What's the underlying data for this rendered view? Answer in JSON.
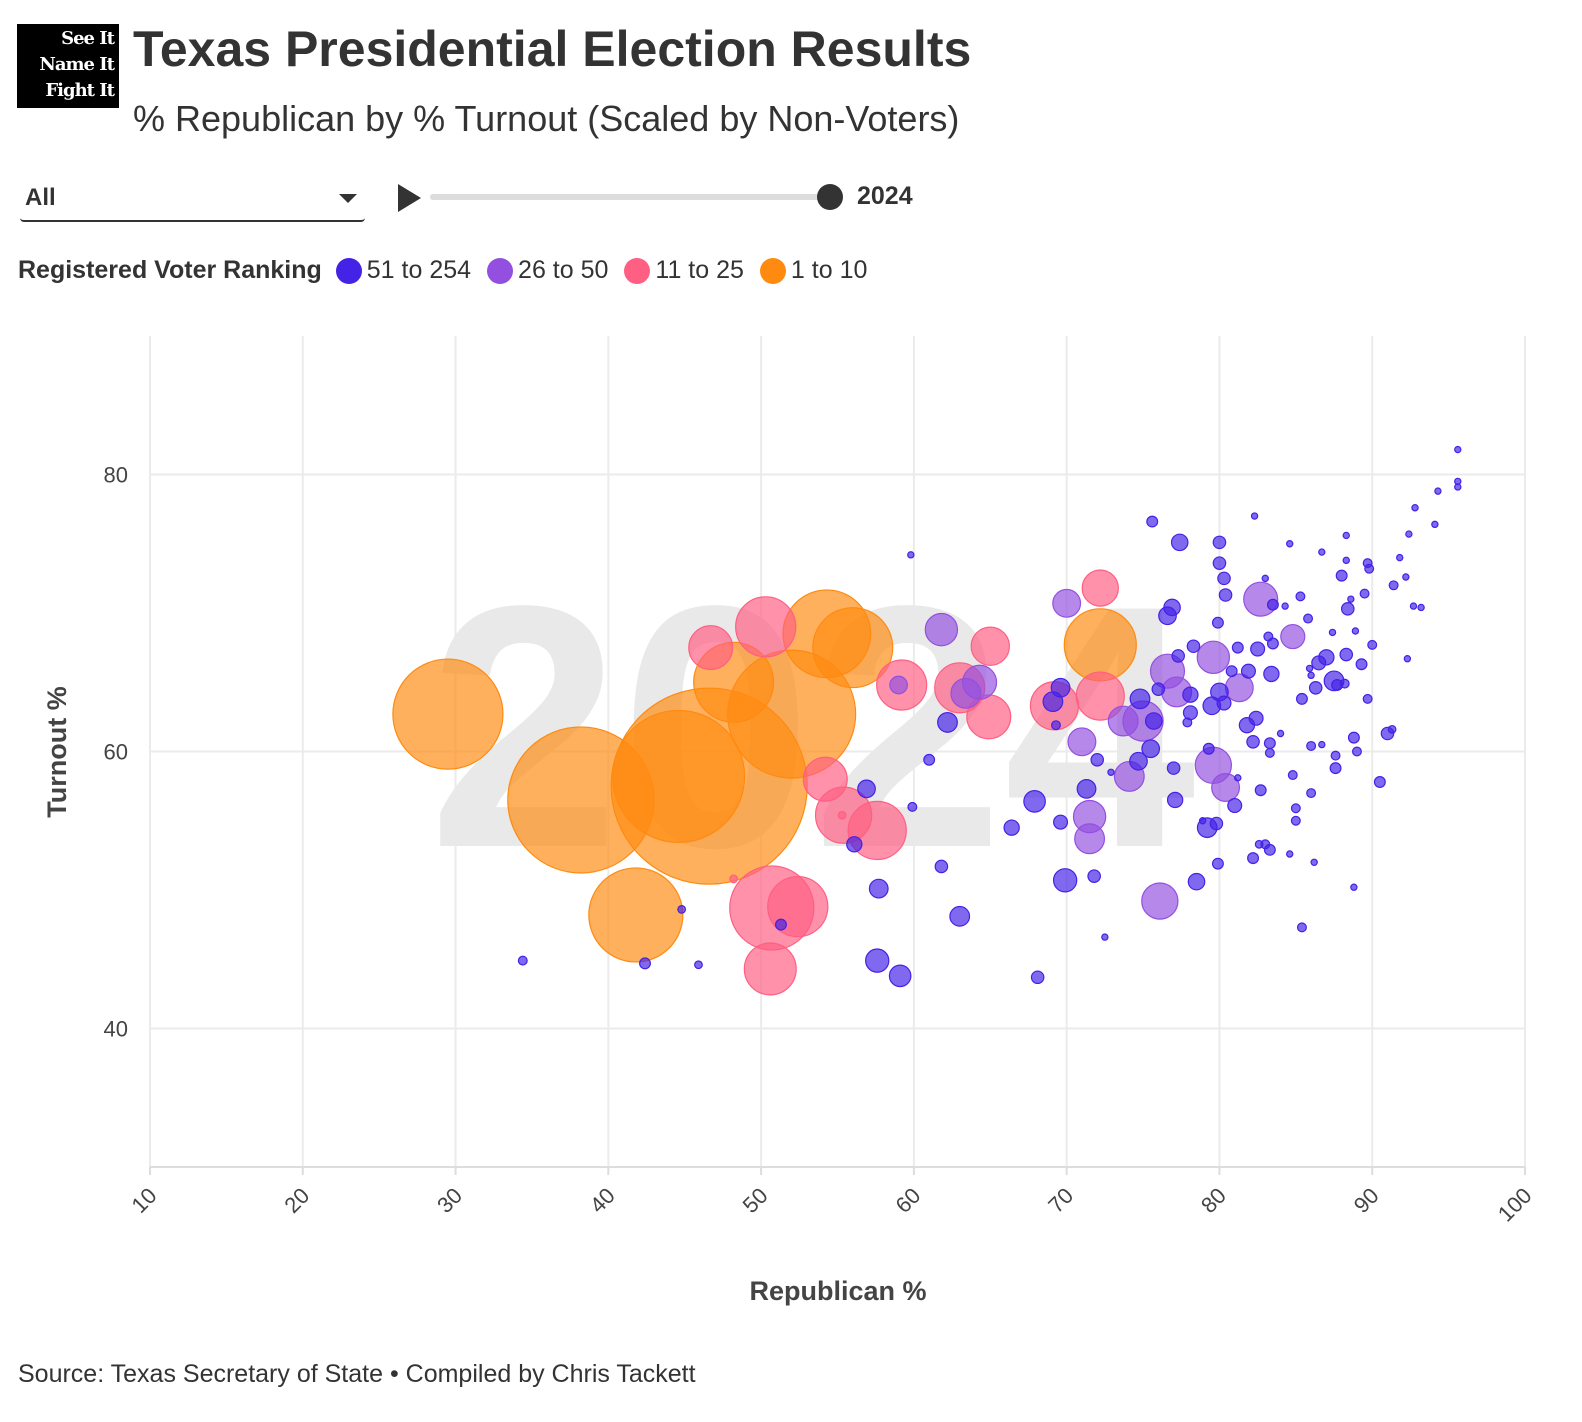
{
  "logo": {
    "lines": [
      "See It",
      "Name It",
      "Fight It"
    ]
  },
  "header": {
    "title": "Texas Presidential Election Results",
    "subtitle": "% Republican by % Turnout (Scaled by Non-Voters)"
  },
  "controls": {
    "filter_value": "All",
    "year": "2024",
    "slider_progress": 1.0
  },
  "legend": {
    "title": "Registered Voter Ranking",
    "items": [
      {
        "label": "51 to 254",
        "color": "#4422e6"
      },
      {
        "label": "26 to 50",
        "color": "#9350e0"
      },
      {
        "label": "11 to 25",
        "color": "#ff5f82"
      },
      {
        "label": "1 to 10",
        "color": "#ff8a10"
      }
    ]
  },
  "footer": {
    "source": "Source: Texas Secretary of State • Compiled by Chris Tackett"
  },
  "chart_data": {
    "type": "scatter",
    "title": "Texas Presidential Election Results",
    "subtitle": "% Republican by % Turnout (Scaled by Non-Voters)",
    "xlabel": "Republican %",
    "ylabel": "Turnout %",
    "xlim": [
      10,
      100
    ],
    "ylim": [
      30,
      90
    ],
    "xticks": [
      "10",
      "20",
      "30",
      "40",
      "50",
      "60",
      "70",
      "80",
      "90",
      "100"
    ],
    "yticks": [
      "40",
      "60",
      "80"
    ],
    "xtick_values": [
      10,
      20,
      30,
      40,
      50,
      60,
      70,
      80,
      90,
      100
    ],
    "ytick_values": [
      40,
      60,
      80
    ],
    "grid": true,
    "watermark": "2024",
    "size_field": "non_voters_thousands_approx",
    "point_fields": [
      "republican_pct",
      "turnout_pct",
      "non_voters_k",
      "ranking_group"
    ],
    "groups": [
      "51 to 254",
      "26 to 50",
      "11 to 25",
      "1 to 10"
    ],
    "points": [
      [
        29.5,
        62.7,
        315,
        3
      ],
      [
        38.2,
        56.5,
        555,
        3
      ],
      [
        46.6,
        57.5,
        1000,
        3
      ],
      [
        44.6,
        58.2,
        453,
        3
      ],
      [
        52,
        62.7,
        426,
        3
      ],
      [
        48.2,
        65,
        166,
        3
      ],
      [
        54.3,
        68.5,
        200,
        3
      ],
      [
        56,
        67.5,
        166,
        3
      ],
      [
        41.8,
        48.2,
        230,
        3
      ],
      [
        72.2,
        67.7,
        135,
        3
      ],
      [
        50.3,
        69,
        94,
        2
      ],
      [
        46.7,
        67.5,
        50,
        2
      ],
      [
        59.2,
        64.8,
        65,
        2
      ],
      [
        63,
        64.6,
        65,
        2
      ],
      [
        65,
        67.6,
        38,
        2
      ],
      [
        64.9,
        62.5,
        50,
        2
      ],
      [
        69.2,
        63.3,
        60,
        2
      ],
      [
        72.2,
        64,
        60,
        2
      ],
      [
        72.2,
        71.8,
        34,
        2
      ],
      [
        54.2,
        58,
        50,
        2
      ],
      [
        55.4,
        55.4,
        82,
        2
      ],
      [
        57.6,
        54.3,
        88,
        2
      ],
      [
        50.7,
        48.7,
        184,
        2
      ],
      [
        52.4,
        48.8,
        94,
        2
      ],
      [
        50.6,
        44.3,
        70,
        2
      ],
      [
        55.3,
        55.4,
        1.5,
        2
      ],
      [
        48.2,
        50.8,
        1.5,
        2
      ],
      [
        61.8,
        68.8,
        27,
        1
      ],
      [
        64.3,
        65,
        30,
        1
      ],
      [
        63.4,
        64.2,
        23,
        1
      ],
      [
        70,
        70.7,
        20,
        1
      ],
      [
        71,
        60.7,
        20,
        1
      ],
      [
        71.5,
        55.3,
        27,
        1
      ],
      [
        71.5,
        53.7,
        23,
        1
      ],
      [
        74.1,
        58.2,
        23,
        1
      ],
      [
        75,
        62.2,
        42,
        1
      ],
      [
        76.1,
        49.2,
        34,
        1
      ],
      [
        76.6,
        65.8,
        30,
        1
      ],
      [
        77.2,
        64.3,
        23,
        1
      ],
      [
        79.6,
        66.8,
        27,
        1
      ],
      [
        79.6,
        59,
        34,
        1
      ],
      [
        80.4,
        57.4,
        20,
        1
      ],
      [
        81.3,
        64.6,
        20,
        1
      ],
      [
        82.7,
        71,
        30,
        1
      ],
      [
        84.8,
        68.3,
        15,
        1
      ],
      [
        73.7,
        62.2,
        23,
        1
      ],
      [
        59,
        64.8,
        8,
        1
      ],
      [
        34.4,
        44.9,
        2,
        0
      ],
      [
        42.4,
        44.7,
        3,
        0
      ],
      [
        45.9,
        44.6,
        1.5,
        0
      ],
      [
        44.8,
        48.6,
        1.5,
        0
      ],
      [
        51.3,
        47.5,
        3,
        0
      ],
      [
        56.9,
        57.3,
        8,
        0
      ],
      [
        56.1,
        53.3,
        6,
        0
      ],
      [
        57.7,
        50.1,
        9,
        0
      ],
      [
        57.6,
        44.9,
        14,
        0
      ],
      [
        59.1,
        43.8,
        12,
        0
      ],
      [
        59.8,
        74.2,
        1,
        0
      ],
      [
        61,
        59.4,
        3,
        0
      ],
      [
        59.9,
        56,
        2,
        0
      ],
      [
        61.8,
        51.7,
        4,
        0
      ],
      [
        62.2,
        62.1,
        10,
        0
      ],
      [
        63,
        48.1,
        10,
        0
      ],
      [
        66.4,
        54.5,
        6,
        0
      ],
      [
        67.9,
        56.4,
        12,
        0
      ],
      [
        68.1,
        43.7,
        4,
        0
      ],
      [
        69.1,
        63.6,
        10,
        0
      ],
      [
        69.6,
        64.6,
        9,
        0
      ],
      [
        69.3,
        61.9,
        2,
        0
      ],
      [
        69.6,
        54.9,
        5,
        0
      ],
      [
        69.9,
        50.7,
        14,
        0
      ],
      [
        71.3,
        57.3,
        9,
        0
      ],
      [
        72,
        59.4,
        4,
        0
      ],
      [
        71.8,
        51,
        4,
        0
      ],
      [
        72.5,
        46.6,
        1,
        0
      ],
      [
        72.9,
        58.5,
        1,
        0
      ],
      [
        74.7,
        59.3,
        8,
        0
      ],
      [
        74.8,
        63.8,
        10,
        0
      ],
      [
        75.5,
        60.2,
        8,
        0
      ],
      [
        75.7,
        62.2,
        7,
        0
      ],
      [
        75.6,
        76.6,
        3,
        0
      ],
      [
        76,
        64.5,
        4,
        0
      ],
      [
        76.6,
        69.8,
        8,
        0
      ],
      [
        76.9,
        70.4,
        7,
        0
      ],
      [
        77.1,
        56.5,
        6,
        0
      ],
      [
        77,
        58.8,
        4,
        0
      ],
      [
        77.4,
        75.1,
        7,
        0
      ],
      [
        77.3,
        66.9,
        4,
        0
      ],
      [
        77.9,
        62.1,
        2,
        0
      ],
      [
        78.1,
        62.8,
        5,
        0
      ],
      [
        78.1,
        64.1,
        6,
        0
      ],
      [
        78.3,
        67.6,
        4,
        0
      ],
      [
        78.5,
        50.6,
        7,
        0
      ],
      [
        78.9,
        55,
        1,
        0
      ],
      [
        79.2,
        54.5,
        10,
        0
      ],
      [
        79.3,
        60.2,
        3,
        0
      ],
      [
        79.5,
        63.3,
        8,
        0
      ],
      [
        79.8,
        54.8,
        4,
        0
      ],
      [
        79.9,
        51.9,
        3,
        0
      ],
      [
        79.9,
        69.3,
        3,
        0
      ],
      [
        80,
        75.1,
        4,
        0
      ],
      [
        80,
        73.6,
        4,
        0
      ],
      [
        80.3,
        72.5,
        4,
        0
      ],
      [
        80.4,
        71.3,
        4,
        0
      ],
      [
        80,
        64.3,
        8,
        0
      ],
      [
        80.3,
        63.5,
        5,
        0
      ],
      [
        80.8,
        65.8,
        3,
        0
      ],
      [
        81,
        56.1,
        5,
        0
      ],
      [
        81.2,
        67.5,
        3,
        0
      ],
      [
        81.2,
        58.1,
        1,
        0
      ],
      [
        81.8,
        61.9,
        6,
        0
      ],
      [
        81.9,
        65.8,
        5,
        0
      ],
      [
        82.2,
        52.3,
        3,
        0
      ],
      [
        82.2,
        60.7,
        4,
        0
      ],
      [
        82.4,
        62.4,
        5,
        0
      ],
      [
        82.3,
        77,
        1,
        0
      ],
      [
        82.5,
        67.4,
        5,
        0
      ],
      [
        82.6,
        53.3,
        1.5,
        0
      ],
      [
        82.7,
        57.2,
        3,
        0
      ],
      [
        83,
        72.5,
        1,
        0
      ],
      [
        83.2,
        68.3,
        2,
        0
      ],
      [
        83,
        53.3,
        2,
        0
      ],
      [
        83.3,
        60.6,
        3,
        0
      ],
      [
        83.4,
        65.6,
        6,
        0
      ],
      [
        83.3,
        59.9,
        2,
        0
      ],
      [
        83.3,
        52.9,
        3,
        0
      ],
      [
        83.5,
        67.8,
        3,
        0
      ],
      [
        83.5,
        70.6,
        3,
        0
      ],
      [
        84,
        61.3,
        1,
        0
      ],
      [
        84.3,
        70.5,
        1,
        0
      ],
      [
        84.6,
        52.6,
        1,
        0
      ],
      [
        84.6,
        75,
        1,
        0
      ],
      [
        84.8,
        58.3,
        2,
        0
      ],
      [
        85,
        55.9,
        2,
        0
      ],
      [
        85,
        55,
        2,
        0
      ],
      [
        85.3,
        71.2,
        2,
        0
      ],
      [
        85.4,
        63.8,
        3,
        0
      ],
      [
        85.4,
        47.3,
        2,
        0
      ],
      [
        85.8,
        69.6,
        2,
        0
      ],
      [
        85.9,
        66,
        1,
        0
      ],
      [
        86,
        65.5,
        1,
        0
      ],
      [
        86,
        57,
        2,
        0
      ],
      [
        86,
        60.4,
        2,
        0
      ],
      [
        86.2,
        52,
        1,
        0
      ],
      [
        86.3,
        64.6,
        4,
        0
      ],
      [
        86.5,
        66.4,
        5,
        0
      ],
      [
        86.7,
        60.5,
        1,
        0
      ],
      [
        86.7,
        74.4,
        1,
        0
      ],
      [
        87,
        66.8,
        6,
        0
      ],
      [
        87.4,
        68.6,
        1,
        0
      ],
      [
        87.6,
        58.8,
        3,
        0
      ],
      [
        87.7,
        64.8,
        3,
        0
      ],
      [
        87.6,
        59.7,
        2,
        0
      ],
      [
        88,
        72.7,
        3,
        0
      ],
      [
        88.3,
        73.8,
        1,
        0
      ],
      [
        88.3,
        67,
        4,
        0
      ],
      [
        88.4,
        70.3,
        4,
        0
      ],
      [
        88.6,
        71,
        1,
        0
      ],
      [
        88.3,
        75.6,
        1,
        0
      ],
      [
        88.9,
        68.7,
        1,
        0
      ],
      [
        88.8,
        61,
        3,
        0
      ],
      [
        89,
        60,
        2,
        0
      ],
      [
        89.3,
        66.3,
        3,
        0
      ],
      [
        89.7,
        73.6,
        2,
        0
      ],
      [
        89.8,
        73.2,
        2,
        0
      ],
      [
        89.7,
        63.8,
        2,
        0
      ],
      [
        90,
        67.7,
        2,
        0
      ],
      [
        89.5,
        71.4,
        2,
        0
      ],
      [
        90.5,
        57.8,
        3,
        0
      ],
      [
        91,
        61.3,
        4,
        0
      ],
      [
        91.3,
        61.6,
        1.5,
        0
      ],
      [
        91.4,
        72,
        2,
        0
      ],
      [
        91.8,
        74,
        1,
        0
      ],
      [
        92.2,
        72.6,
        1,
        0
      ],
      [
        92.3,
        66.7,
        1,
        0
      ],
      [
        92.4,
        75.7,
        1,
        0
      ],
      [
        92.7,
        70.5,
        1,
        0
      ],
      [
        92.8,
        77.6,
        1,
        0
      ],
      [
        93.2,
        70.4,
        1,
        0
      ],
      [
        94.1,
        76.4,
        1,
        0
      ],
      [
        94.3,
        78.8,
        1,
        0
      ],
      [
        95.6,
        81.8,
        1,
        0
      ],
      [
        95.6,
        79.5,
        1,
        0
      ],
      [
        95.6,
        79.1,
        1,
        0
      ],
      [
        88.8,
        50.2,
        1,
        0
      ],
      [
        87.5,
        65.1,
        10,
        0
      ],
      [
        88.2,
        64.9,
        2,
        0
      ]
    ]
  }
}
